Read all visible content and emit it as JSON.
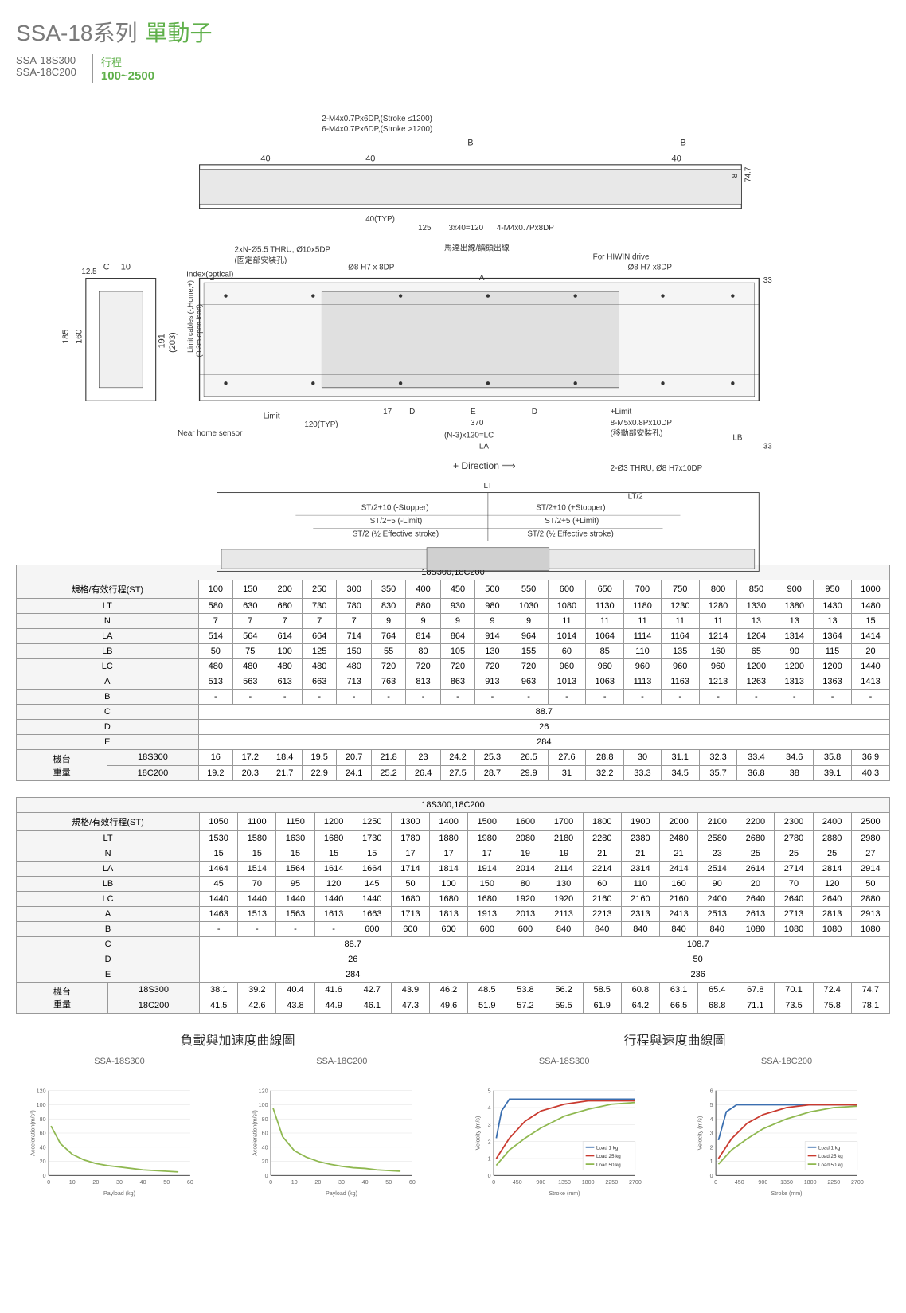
{
  "header": {
    "series_prefix": "SSA-18系列",
    "series_suffix": "單動子",
    "models": [
      "SSA-18S300",
      "SSA-18C200"
    ],
    "stroke_label": "行程",
    "stroke_range": "100~2500"
  },
  "diagram": {
    "annotations": [
      "2-M4x0.7Px6DP,(Stroke ≤1200)",
      "6-M4x0.7Px6DP,(Stroke >1200)",
      "4-M4x0.7Px8DP",
      "2xN-Ø5.5 THRU, Ø10x5DP",
      "(固定部安裝孔)",
      "Index(optical)",
      "Ø8 H7 x 8DP",
      "For HIWIN drive",
      "Limit cables (-,Home,+)",
      "(0.3m open lead)",
      "馬達出線/讀頭出線",
      "Near home sensor",
      "-Limit",
      "+Limit",
      "8-M5x0.8Px10DP",
      "(移動部安裝孔)",
      "2-Ø3 THRU, Ø8 H7x10DP",
      "+ Direction",
      "ST/2+10 (-Stopper)",
      "ST/2+10 (+Stopper)",
      "ST/2+5 (-Limit)",
      "ST/2+5 (+Limit)",
      "ST/2 (½ Effective stroke)",
      "ST/2 (½ Effective stroke)"
    ],
    "dims": [
      "B",
      "40",
      "40(TYP)",
      "125",
      "3x40=120",
      "74.7",
      "8",
      "12.5",
      "C",
      "10",
      "185",
      "160",
      "191",
      "(203)",
      "2",
      "A",
      "33",
      "17",
      "D",
      "E",
      "D",
      "120(TYP)",
      "370",
      "(N-3)x120=LC",
      "LA",
      "LB",
      "33",
      "LT",
      "LT/2"
    ]
  },
  "table1": {
    "title": "18S300,18C200",
    "header_label": "規格/有效行程(ST)",
    "strokes": [
      100,
      150,
      200,
      250,
      300,
      350,
      400,
      450,
      500,
      550,
      600,
      650,
      700,
      750,
      800,
      850,
      900,
      950,
      1000
    ],
    "rows": [
      {
        "label": "LT",
        "v": [
          580,
          630,
          680,
          730,
          780,
          830,
          880,
          930,
          980,
          1030,
          1080,
          1130,
          1180,
          1230,
          1280,
          1330,
          1380,
          1430,
          1480
        ]
      },
      {
        "label": "N",
        "v": [
          7,
          7,
          7,
          7,
          7,
          9,
          9,
          9,
          9,
          9,
          11,
          11,
          11,
          11,
          11,
          13,
          13,
          13,
          15
        ]
      },
      {
        "label": "LA",
        "v": [
          514,
          564,
          614,
          664,
          714,
          764,
          814,
          864,
          914,
          964,
          1014,
          1064,
          1114,
          1164,
          1214,
          1264,
          1314,
          1364,
          1414
        ]
      },
      {
        "label": "LB",
        "v": [
          50,
          75,
          100,
          125,
          150,
          55,
          80,
          105,
          130,
          155,
          60,
          85,
          110,
          135,
          160,
          65,
          90,
          115,
          20
        ]
      },
      {
        "label": "LC",
        "v": [
          480,
          480,
          480,
          480,
          480,
          720,
          720,
          720,
          720,
          720,
          960,
          960,
          960,
          960,
          960,
          1200,
          1200,
          1200,
          1440
        ]
      },
      {
        "label": "A",
        "v": [
          513,
          563,
          613,
          663,
          713,
          763,
          813,
          863,
          913,
          963,
          1013,
          1063,
          1113,
          1163,
          1213,
          1263,
          1313,
          1363,
          1413
        ]
      },
      {
        "label": "B",
        "v": [
          "-",
          "-",
          "-",
          "-",
          "-",
          "-",
          "-",
          "-",
          "-",
          "-",
          "-",
          "-",
          "-",
          "-",
          "-",
          "-",
          "-",
          "-",
          "-"
        ]
      }
    ],
    "span_rows": [
      {
        "label": "C",
        "value": "88.7",
        "span": 19
      },
      {
        "label": "D",
        "value": "26",
        "span": 19
      },
      {
        "label": "E",
        "value": "284",
        "span": 19
      }
    ],
    "weight_label": "機台\n重量",
    "weight_rows": [
      {
        "label": "18S300",
        "v": [
          16.0,
          17.2,
          18.4,
          19.5,
          20.7,
          21.8,
          23.0,
          24.2,
          25.3,
          26.5,
          27.6,
          28.8,
          30.0,
          31.1,
          32.3,
          33.4,
          34.6,
          35.8,
          36.9
        ]
      },
      {
        "label": "18C200",
        "v": [
          19.2,
          20.3,
          21.7,
          22.9,
          24.1,
          25.2,
          26.4,
          27.5,
          28.7,
          29.9,
          31.0,
          32.2,
          33.3,
          34.5,
          35.7,
          36.8,
          38.0,
          39.1,
          40.3
        ]
      }
    ]
  },
  "table2": {
    "title": "18S300,18C200",
    "header_label": "規格/有效行程(ST)",
    "strokes": [
      1050,
      1100,
      1150,
      1200,
      1250,
      1300,
      1400,
      1500,
      1600,
      1700,
      1800,
      1900,
      2000,
      2100,
      2200,
      2300,
      2400,
      2500
    ],
    "rows": [
      {
        "label": "LT",
        "v": [
          1530,
          1580,
          1630,
          1680,
          1730,
          1780,
          1880,
          1980,
          2080,
          2180,
          2280,
          2380,
          2480,
          2580,
          2680,
          2780,
          2880,
          2980
        ]
      },
      {
        "label": "N",
        "v": [
          15,
          15,
          15,
          15,
          15,
          17,
          17,
          17,
          19,
          19,
          21,
          21,
          21,
          23,
          25,
          25,
          25,
          27
        ]
      },
      {
        "label": "LA",
        "v": [
          1464,
          1514,
          1564,
          1614,
          1664,
          1714,
          1814,
          1914,
          2014,
          2114,
          2214,
          2314,
          2414,
          2514,
          2614,
          2714,
          2814,
          2914
        ]
      },
      {
        "label": "LB",
        "v": [
          45,
          70,
          95,
          120,
          145,
          50,
          100,
          150,
          80,
          130,
          60,
          110,
          160,
          90,
          20,
          70,
          120,
          50
        ]
      },
      {
        "label": "LC",
        "v": [
          1440,
          1440,
          1440,
          1440,
          1440,
          1680,
          1680,
          1680,
          1920,
          1920,
          2160,
          2160,
          2160,
          2400,
          2640,
          2640,
          2640,
          2880
        ]
      },
      {
        "label": "A",
        "v": [
          1463,
          1513,
          1563,
          1613,
          1663,
          1713,
          1813,
          1913,
          2013,
          2113,
          2213,
          2313,
          2413,
          2513,
          2613,
          2713,
          2813,
          2913
        ]
      },
      {
        "label": "B",
        "v": [
          "-",
          "-",
          "-",
          "-",
          600,
          600,
          600,
          600,
          600,
          840,
          840,
          840,
          840,
          840,
          1080,
          1080,
          1080,
          1080
        ]
      }
    ],
    "span_rows": [
      {
        "label": "C",
        "values": [
          {
            "v": "88.7",
            "span": 8
          },
          {
            "v": "108.7",
            "span": 10
          }
        ]
      },
      {
        "label": "D",
        "values": [
          {
            "v": "26",
            "span": 8
          },
          {
            "v": "50",
            "span": 10
          }
        ]
      },
      {
        "label": "E",
        "values": [
          {
            "v": "284",
            "span": 8
          },
          {
            "v": "236",
            "span": 10
          }
        ]
      }
    ],
    "weight_label": "機台\n重量",
    "weight_rows": [
      {
        "label": "18S300",
        "v": [
          38.1,
          39.2,
          40.4,
          41.6,
          42.7,
          43.9,
          46.2,
          48.5,
          53.8,
          56.2,
          58.5,
          60.8,
          63.1,
          65.4,
          67.8,
          70.1,
          72.4,
          74.7
        ]
      },
      {
        "label": "18C200",
        "v": [
          41.5,
          42.6,
          43.8,
          44.9,
          46.1,
          47.3,
          49.6,
          51.9,
          57.2,
          59.5,
          61.9,
          64.2,
          66.5,
          68.8,
          71.1,
          73.5,
          75.8,
          78.1
        ]
      }
    ]
  },
  "charts": {
    "accel_title": "負載與加速度曲線圖",
    "vel_title": "行程與速度曲線圖",
    "accel": [
      {
        "name": "SSA-18S300",
        "ylabel": "Acceleration(m/s²)",
        "xlabel": "Payload (kg)",
        "xlim": [
          0,
          60
        ],
        "ylim": [
          0,
          120
        ],
        "ytick": 20,
        "xtick": 10,
        "color": "#8fb850",
        "points": [
          [
            1,
            70
          ],
          [
            5,
            45
          ],
          [
            10,
            30
          ],
          [
            15,
            22
          ],
          [
            20,
            17
          ],
          [
            25,
            14
          ],
          [
            30,
            12
          ],
          [
            35,
            10
          ],
          [
            40,
            8
          ],
          [
            45,
            7
          ],
          [
            50,
            6
          ],
          [
            55,
            5
          ]
        ]
      },
      {
        "name": "SSA-18C200",
        "ylabel": "Acceleration(m/s²)",
        "xlabel": "Payload (kg)",
        "xlim": [
          0,
          60
        ],
        "ylim": [
          0,
          120
        ],
        "ytick": 20,
        "xtick": 10,
        "color": "#8fb850",
        "points": [
          [
            1,
            95
          ],
          [
            5,
            55
          ],
          [
            10,
            35
          ],
          [
            15,
            26
          ],
          [
            20,
            20
          ],
          [
            25,
            16
          ],
          [
            30,
            13
          ],
          [
            35,
            11
          ],
          [
            40,
            10
          ],
          [
            45,
            8
          ],
          [
            50,
            7
          ],
          [
            55,
            6
          ]
        ]
      }
    ],
    "vel": [
      {
        "name": "SSA-18S300",
        "ylabel": "Velocity (m/s)",
        "xlabel": "Stroke (mm)",
        "xlim": [
          0,
          2700
        ],
        "ylim": [
          0,
          5
        ],
        "ytick": 1,
        "xtick": 450,
        "legend": [
          "Load 1 kg",
          "Load 25 kg",
          "Load 50 kg"
        ],
        "colors": [
          "#3b6fb0",
          "#c93a2f",
          "#8fb850"
        ],
        "series": [
          [
            [
              50,
              2.2
            ],
            [
              150,
              3.8
            ],
            [
              300,
              4.5
            ],
            [
              450,
              4.5
            ],
            [
              900,
              4.5
            ],
            [
              2700,
              4.5
            ]
          ],
          [
            [
              50,
              1.0
            ],
            [
              300,
              2.2
            ],
            [
              600,
              3.2
            ],
            [
              900,
              3.8
            ],
            [
              1350,
              4.2
            ],
            [
              1800,
              4.4
            ],
            [
              2700,
              4.4
            ]
          ],
          [
            [
              50,
              0.6
            ],
            [
              300,
              1.5
            ],
            [
              600,
              2.2
            ],
            [
              900,
              2.8
            ],
            [
              1350,
              3.5
            ],
            [
              1800,
              3.9
            ],
            [
              2250,
              4.2
            ],
            [
              2700,
              4.3
            ]
          ]
        ]
      },
      {
        "name": "SSA-18C200",
        "ylabel": "Velocity (m/s)",
        "xlabel": "Stroke (mm)",
        "xlim": [
          0,
          2700
        ],
        "ylim": [
          0,
          6
        ],
        "ytick": 1,
        "xtick": 450,
        "legend": [
          "Load 1 kg",
          "Load 25 kg",
          "Load 50 kg"
        ],
        "colors": [
          "#3b6fb0",
          "#c93a2f",
          "#8fb850"
        ],
        "series": [
          [
            [
              50,
              2.5
            ],
            [
              200,
              4.5
            ],
            [
              400,
              5.0
            ],
            [
              900,
              5.0
            ],
            [
              2700,
              5.0
            ]
          ],
          [
            [
              50,
              1.2
            ],
            [
              300,
              2.6
            ],
            [
              600,
              3.7
            ],
            [
              900,
              4.3
            ],
            [
              1350,
              4.8
            ],
            [
              1800,
              5.0
            ],
            [
              2700,
              5.0
            ]
          ],
          [
            [
              50,
              0.8
            ],
            [
              300,
              1.8
            ],
            [
              600,
              2.6
            ],
            [
              900,
              3.3
            ],
            [
              1350,
              4.0
            ],
            [
              1800,
              4.5
            ],
            [
              2250,
              4.8
            ],
            [
              2700,
              4.9
            ]
          ]
        ]
      }
    ]
  }
}
